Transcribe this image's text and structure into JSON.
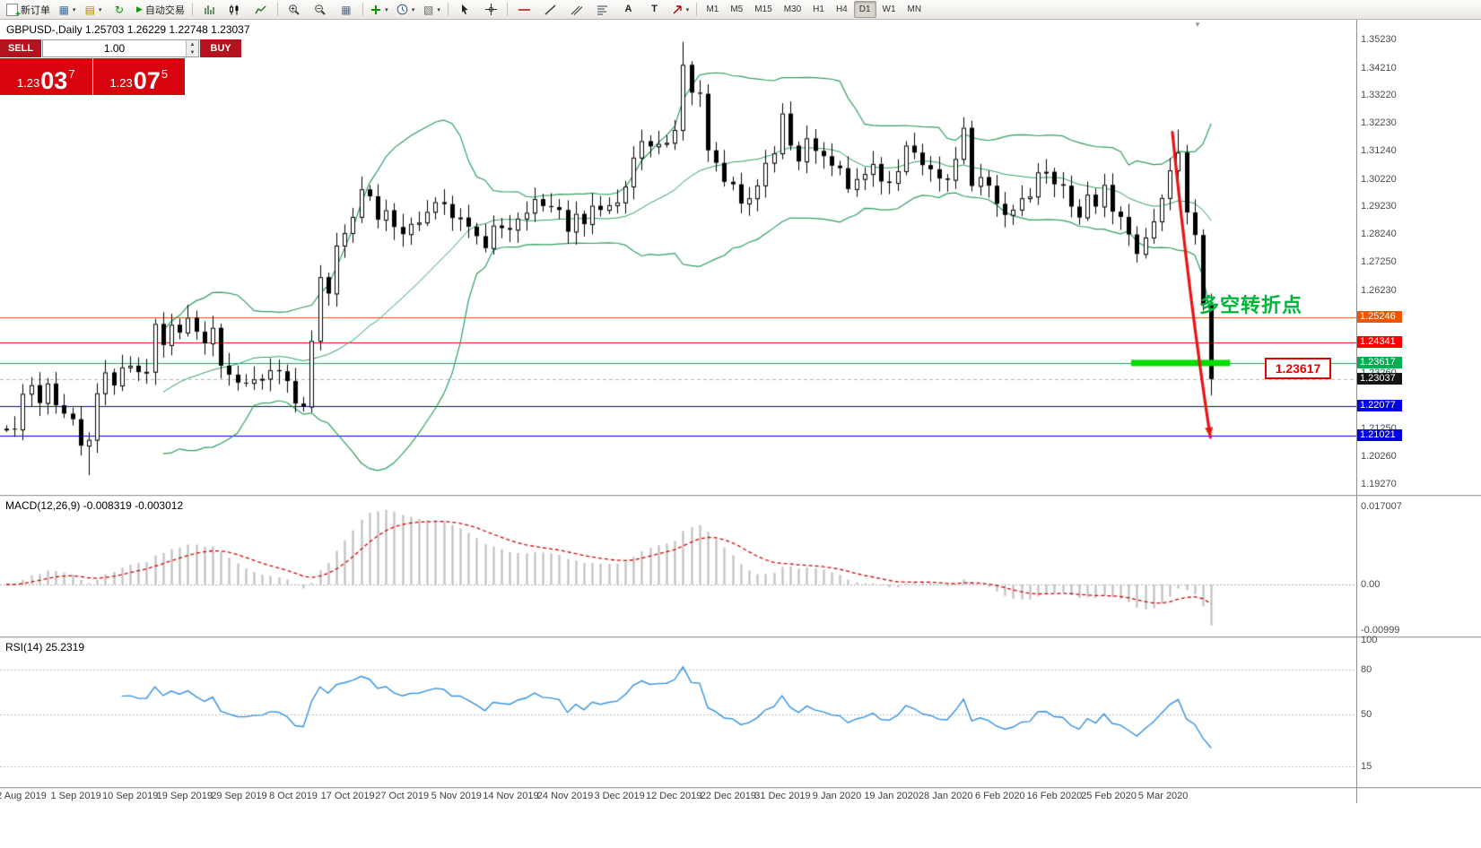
{
  "toolbar": {
    "new_order_label": "新订单",
    "autotrading_label": "自动交易",
    "timeframes": [
      "M1",
      "M5",
      "M15",
      "M30",
      "H1",
      "H4",
      "D1",
      "W1",
      "MN"
    ],
    "active_timeframe": "D1"
  },
  "chart_header": {
    "text": "GBPUSD-,Daily  1.25703 1.26229 1.22748 1.23037"
  },
  "one_click_trading": {
    "sell_label": "SELL",
    "buy_label": "BUY",
    "volume": "1.00",
    "sell_price": {
      "prefix": "1.23",
      "big": "03",
      "sup": "7"
    },
    "buy_price": {
      "prefix": "1.23",
      "big": "07",
      "sup": "5"
    }
  },
  "annotation": {
    "text": "多空转折点",
    "color": "#00b43c"
  },
  "level_callout": {
    "text": "1.23617"
  },
  "macd_panel": {
    "label": "MACD(12,26,9) -0.008319 -0.003012",
    "ticks": [
      {
        "text": "0.017007",
        "value": 0.017007
      },
      {
        "text": "0.00",
        "value": 0
      },
      {
        "text": "-0.00999",
        "value": -0.00999
      }
    ]
  },
  "rsi_panel": {
    "label": "RSI(14) 25.2319",
    "ticks": [
      {
        "text": "100",
        "value": 100
      },
      {
        "text": "80",
        "value": 80
      },
      {
        "text": "50",
        "value": 50
      },
      {
        "text": "15",
        "value": 15
      }
    ]
  },
  "price_axis": {
    "gray_ticks": [
      {
        "text": "1.35230",
        "value": 1.3523
      },
      {
        "text": "1.34210",
        "value": 1.3421
      },
      {
        "text": "1.33220",
        "value": 1.3322
      },
      {
        "text": "1.32230",
        "value": 1.3223
      },
      {
        "text": "1.31240",
        "value": 1.3124
      },
      {
        "text": "1.30220",
        "value": 1.3022
      },
      {
        "text": "1.29230",
        "value": 1.2923
      },
      {
        "text": "1.28240",
        "value": 1.2824
      },
      {
        "text": "1.27250",
        "value": 1.2725
      },
      {
        "text": "1.26230",
        "value": 1.2623
      },
      {
        "text": "1.23260",
        "value": 1.2326
      },
      {
        "text": "1.21250",
        "value": 1.2125
      },
      {
        "text": "1.20260",
        "value": 1.2026
      },
      {
        "text": "1.19270",
        "value": 1.1927
      }
    ],
    "level_labels": [
      {
        "text": "1.25246",
        "value": 1.25246,
        "bg": "#ee5500"
      },
      {
        "text": "1.24341",
        "value": 1.24341,
        "bg": "#ff0000"
      },
      {
        "text": "1.23617",
        "value": 1.23617,
        "bg": "#00b050"
      },
      {
        "text": "1.23037",
        "value": 1.23037,
        "bg": "#141414"
      },
      {
        "text": "1.22077",
        "value": 1.22077,
        "bg": "#0000e0"
      },
      {
        "text": "1.21021",
        "value": 1.21021,
        "bg": "#0000e0"
      }
    ]
  },
  "date_axis": [
    "2 Aug 2019",
    "1 Sep 2019",
    "10 Sep 2019",
    "19 Sep 2019",
    "29 Sep 2019",
    "8 Oct 2019",
    "17 Oct 2019",
    "27 Oct 2019",
    "5 Nov 2019",
    "14 Nov 2019",
    "24 Nov 2019",
    "3 Dec 2019",
    "12 Dec 2019",
    "22 Dec 2019",
    "31 Dec 2019",
    "9 Jan 2020",
    "19 Jan 2020",
    "28 Jan 2020",
    "6 Feb 2020",
    "16 Feb 2020",
    "25 Feb 2020",
    "5 Mar 2020"
  ],
  "chart_data": {
    "type": "candlestick",
    "symbol": "GBPUSD-",
    "timeframe": "Daily",
    "ohlc_display": {
      "open": "1.25703",
      "high": "1.26229",
      "low": "1.22748",
      "close": "1.23037"
    },
    "ylim": [
      1.1927,
      1.3523
    ],
    "closes": [
      1.2126,
      1.2123,
      1.2251,
      1.2282,
      1.2218,
      1.2288,
      1.221,
      1.218,
      1.216,
      1.2065,
      1.2086,
      1.2253,
      1.2328,
      1.2281,
      1.2346,
      1.2352,
      1.2329,
      1.233,
      1.2502,
      1.2426,
      1.2499,
      1.2471,
      1.2524,
      1.2474,
      1.2432,
      1.2488,
      1.2352,
      1.232,
      1.2291,
      1.229,
      1.2303,
      1.2305,
      1.2336,
      1.2332,
      1.2297,
      1.2216,
      1.2205,
      1.2441,
      1.267,
      1.2611,
      1.2783,
      1.2828,
      1.2886,
      1.2985,
      1.296,
      1.2876,
      1.291,
      1.285,
      1.2824,
      1.2861,
      1.2866,
      1.2904,
      1.2939,
      1.2932,
      1.2882,
      1.2884,
      1.2851,
      1.2817,
      1.2774,
      1.2855,
      1.2846,
      1.284,
      1.288,
      1.2901,
      1.295,
      1.2925,
      1.2921,
      1.2911,
      1.2833,
      1.2897,
      1.286,
      1.2926,
      1.2911,
      1.2928,
      1.2938,
      1.2995,
      1.3099,
      1.3158,
      1.3139,
      1.3148,
      1.3152,
      1.3198,
      1.3432,
      1.3332,
      1.3328,
      1.3125,
      1.308,
      1.3012,
      1.3003,
      1.2934,
      1.2953,
      1.2999,
      1.308,
      1.3114,
      1.3257,
      1.3142,
      1.3085,
      1.3168,
      1.3123,
      1.3104,
      1.307,
      1.3061,
      1.2986,
      1.3022,
      1.304,
      1.3076,
      1.3013,
      1.3008,
      1.305,
      1.3142,
      1.3117,
      1.3072,
      1.3057,
      1.3024,
      1.3019,
      1.3094,
      1.3206,
      1.2997,
      1.3029,
      1.2998,
      1.2933,
      1.2893,
      1.2912,
      1.2953,
      1.2959,
      1.3046,
      1.3048,
      1.3003,
      1.2998,
      1.2923,
      1.2884,
      1.2966,
      1.2923,
      1.3001,
      1.2905,
      1.2886,
      1.2823,
      1.2753,
      1.2812,
      1.287,
      1.2954,
      1.3053,
      1.3117,
      1.2902,
      1.2821,
      1.257,
      1.2304
    ],
    "wick_overrides": {
      "10": {
        "low": 1.1959
      },
      "82": {
        "high": 1.3514
      },
      "142": {
        "high": 1.32
      },
      "146": {
        "low": 1.2245
      }
    },
    "bollinger": {
      "period": 20,
      "deviation": 2,
      "color": "#2e9e5e"
    },
    "h_lines": [
      {
        "value": 1.25246,
        "color": "#ee5500",
        "label": "1.25246"
      },
      {
        "value": 1.24341,
        "color": "#ff0000",
        "label": "1.24341"
      },
      {
        "value": 1.23617,
        "color": "#00b050",
        "label": "1.23617"
      },
      {
        "value": 1.22077,
        "color": "#0000e0",
        "label": "1.22077"
      },
      {
        "value": 1.21021,
        "color": "#0000e0",
        "label": "1.21021"
      }
    ],
    "current_price": {
      "value": 1.23037,
      "label": "1.23037"
    },
    "highlight_segment": {
      "value": 1.23617,
      "from_bar": 136.3,
      "to_bar": 148.3,
      "color": "#00dd00"
    },
    "trend_arrow": {
      "from_bar": 141.3,
      "from_price": 1.319,
      "ctrl_bar": 143.4,
      "ctrl_price": 1.258,
      "to_bar": 145.9,
      "to_price": 1.2095,
      "color": "#e81414"
    },
    "macd": {
      "fast": 12,
      "slow": 26,
      "signal_period": 9,
      "current_macd": -0.008319,
      "current_signal": -0.003012,
      "histogram_color": "#c4c4c4",
      "signal_color": "#d40000",
      "scale_top": 0.017007,
      "scale_bottom": -0.00999
    },
    "rsi": {
      "period": 14,
      "current": 25.2319,
      "color": "#3391e0",
      "levels": [
        80,
        50,
        15
      ]
    }
  }
}
